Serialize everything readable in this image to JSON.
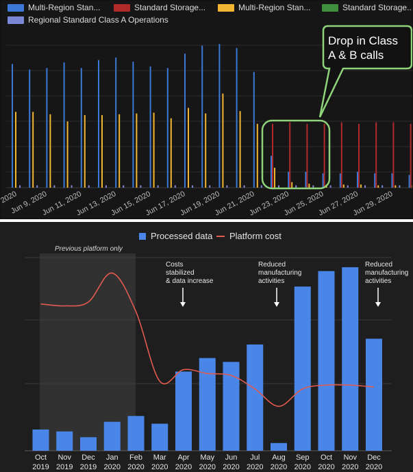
{
  "top": {
    "legend": [
      {
        "label": "Multi-Region Stan...",
        "color": "#3b78d8"
      },
      {
        "label": "Standard Storage...",
        "color": "#b02a2a"
      },
      {
        "label": "Multi-Region Stan...",
        "color": "#f2b632"
      },
      {
        "label": "Standard Storage...",
        "color": "#3f8f3f"
      },
      {
        "label": "Regional Standard Class A Operations",
        "color": "#7a86d6"
      }
    ],
    "callout": {
      "line1": "Drop in Class",
      "line2": "A & B calls",
      "color": "#8fd47a"
    }
  },
  "bottom": {
    "legend": {
      "processed": "Processed data",
      "cost": "Platform cost",
      "bar_color": "#4a86e8",
      "line_color": "#e35b50"
    },
    "shade_label": "Previous platform only",
    "annotations": {
      "a1": [
        "Costs",
        "stabilized",
        "& data increase"
      ],
      "a2": [
        "Reduced",
        "manufacturing",
        "activities"
      ],
      "a3": [
        "Reduced",
        "manufacturing",
        "activities"
      ]
    }
  },
  "chart_data": [
    {
      "type": "bar",
      "x_ticks": [
        "2020",
        "Jun 9, 2020",
        "Jun 11, 2020",
        "Jun 13, 2020",
        "Jun 15, 2020",
        "Jun 17, 2020",
        "Jun 19, 2020",
        "Jun 21, 2020",
        "Jun 23, 2020",
        "Jun 25, 2020",
        "Jun 27, 2020",
        "Jun 29, 2020"
      ],
      "series": [
        {
          "color": "#3b78d8",
          "values": [
            155,
            148,
            150,
            157,
            150,
            160,
            163,
            158,
            152,
            150,
            168,
            178,
            180,
            175,
            145,
            40,
            20,
            20,
            18,
            18,
            20,
            18,
            18,
            16
          ]
        },
        {
          "color": "#b02a2a",
          "values": [
            0,
            0,
            0,
            0,
            0,
            0,
            0,
            0,
            0,
            0,
            0,
            0,
            0,
            0,
            0,
            80,
            82,
            80,
            80,
            82,
            80,
            82,
            82,
            80
          ]
        },
        {
          "color": "#f2b632",
          "values": [
            95,
            95,
            92,
            83,
            91,
            91,
            92,
            93,
            94,
            87,
            100,
            93,
            118,
            96,
            80,
            25,
            7,
            5,
            4,
            4,
            4,
            3,
            3,
            3
          ]
        },
        {
          "color": "#3f8f3f",
          "values": [
            0,
            0,
            0,
            0,
            0,
            0,
            0,
            0,
            0,
            0,
            0,
            0,
            0,
            0,
            0,
            0,
            0,
            0,
            0,
            0,
            0,
            0,
            0,
            0
          ]
        },
        {
          "color": "#7a86d6",
          "values": [
            3,
            3,
            3,
            3,
            3,
            3,
            3,
            3,
            3,
            3,
            3,
            3,
            3,
            3,
            3,
            3,
            3,
            3,
            3,
            3,
            3,
            3,
            3,
            3
          ]
        }
      ]
    },
    {
      "type": "bar",
      "categories": [
        "Oct\n2019",
        "Nov\n2019",
        "Dec\n2019",
        "Jan\n2020",
        "Feb\n2020",
        "Mar\n2020",
        "Apr\n2020",
        "May\n2020",
        "Jun\n2020",
        "Jul\n2020",
        "Aug\n2020",
        "Sep\n2020",
        "Oct\n2020",
        "Nov\n2020",
        "Dec\n2020"
      ],
      "series": [
        {
          "name": "Processed data",
          "type": "bar",
          "values": [
            11,
            10,
            7,
            15,
            18,
            14,
            41,
            48,
            46,
            55,
            4,
            85,
            93,
            95,
            58
          ]
        },
        {
          "name": "Platform cost",
          "type": "line",
          "values": [
            76,
            75,
            77,
            92,
            72,
            36,
            42,
            40,
            39,
            32,
            23,
            32,
            34,
            34,
            33
          ]
        }
      ],
      "ylim": [
        0,
        100
      ],
      "shaded_categories": [
        "Nov\n2019",
        "Dec\n2019",
        "Jan\n2020",
        "Feb\n2020"
      ]
    }
  ]
}
